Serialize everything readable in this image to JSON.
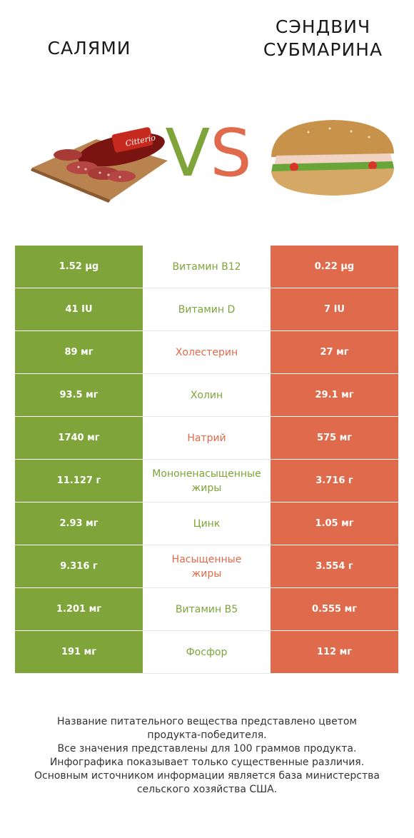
{
  "header": {
    "left_title": "САЛЯМИ",
    "right_title_line1": "СЭНДВИЧ",
    "right_title_line2": "СУБМАРИНА",
    "vs_v": "V",
    "vs_s": "S"
  },
  "colors": {
    "left_product": "#7ea43a",
    "right_product": "#e06a4c"
  },
  "rows": [
    {
      "left": "1.52 µg",
      "name": "Витамин B12",
      "right": "0.22 µg",
      "winner": "left"
    },
    {
      "left": "41 IU",
      "name": "Витамин D",
      "right": "7 IU",
      "winner": "left"
    },
    {
      "left": "89 мг",
      "name": "Холестерин",
      "right": "27 мг",
      "winner": "right"
    },
    {
      "left": "93.5 мг",
      "name": "Холин",
      "right": "29.1 мг",
      "winner": "left"
    },
    {
      "left": "1740 мг",
      "name": "Натрий",
      "right": "575 мг",
      "winner": "right"
    },
    {
      "left": "11.127 г",
      "name_line1": "Мононенасыщенные",
      "name_line2": "жиры",
      "right": "3.716 г",
      "winner": "left"
    },
    {
      "left": "2.93 мг",
      "name": "Цинк",
      "right": "1.05 мг",
      "winner": "left"
    },
    {
      "left": "9.316 г",
      "name_line1": "Насыщенные",
      "name_line2": "жиры",
      "right": "3.554 г",
      "winner": "right"
    },
    {
      "left": "1.201 мг",
      "name": "Витамин B5",
      "right": "0.555 мг",
      "winner": "left"
    },
    {
      "left": "191 мг",
      "name": "Фосфор",
      "right": "112 мг",
      "winner": "left"
    }
  ],
  "footer": {
    "line1": "Название питательного вещества представлено цветом",
    "line2": "продукта-победителя.",
    "line3": "Все значения представлены для 100 граммов продукта.",
    "line4": "Инфографика показывает только существенные различия.",
    "line5": "Основным источником информации является база министерства",
    "line6": "сельского хозяйства США."
  }
}
